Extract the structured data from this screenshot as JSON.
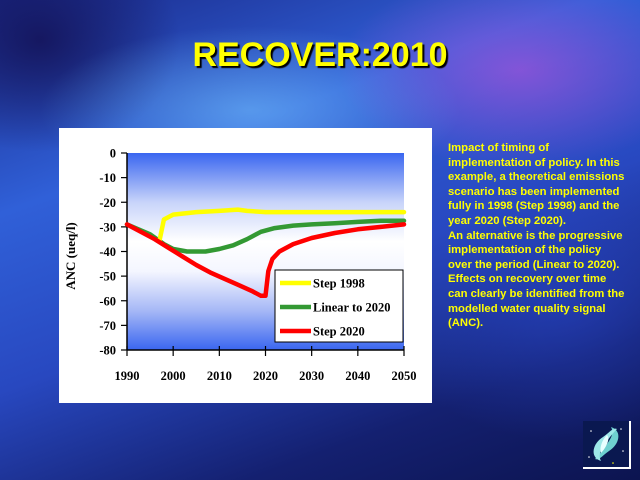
{
  "slide": {
    "title": "RECOVER:2010",
    "description": [
      "Impact of timing of implementation of policy. In this example, a theoretical emissions scenario has been implemented fully in 1998 (Step 1998) and the year 2020 (Step 2020).",
      "An alternative is the progressive implementation of the policy over the period (Linear to 2020). Effects on recovery over time can clearly be identified from the modelled water quality signal (ANC)."
    ],
    "logo_icon": "recover-logo-icon"
  },
  "chart_data": {
    "type": "line",
    "title": "",
    "xlabel": "",
    "ylabel": "ANC (ueq/l)",
    "xlim": [
      1990,
      2050
    ],
    "ylim": [
      -80,
      0
    ],
    "x_ticks": [
      "1990",
      "2000",
      "2010",
      "2020",
      "2030",
      "2040",
      "2050"
    ],
    "y_ticks": [
      "0",
      "-10",
      "-20",
      "-30",
      "-40",
      "-50",
      "-60",
      "-70",
      "-80"
    ],
    "grid": false,
    "legend_position": "lower right (inside)",
    "series": [
      {
        "name": "Step 1998",
        "color": "#ffff00",
        "x": [
          1997,
          1998,
          2000,
          2005,
          2010,
          2014,
          2016,
          2020,
          2030,
          2040,
          2050
        ],
        "y": [
          -36,
          -27,
          -25,
          -24,
          -23.5,
          -23,
          -23.5,
          -24,
          -24,
          -24,
          -24
        ]
      },
      {
        "name": "Linear to 2020",
        "color": "#339933",
        "x": [
          1990,
          1995,
          1998,
          2000,
          2003,
          2007,
          2010,
          2013,
          2016,
          2019,
          2022,
          2026,
          2030,
          2035,
          2040,
          2045,
          2050
        ],
        "y": [
          -29,
          -33,
          -37,
          -39,
          -40,
          -40,
          -39,
          -37.5,
          -35,
          -32,
          -30.5,
          -29.5,
          -29,
          -28.5,
          -28,
          -27.5,
          -27.5
        ]
      },
      {
        "name": "Step 2020",
        "color": "#ff0000",
        "x": [
          1990,
          1993,
          1996,
          1999,
          2002,
          2005,
          2008,
          2011,
          2014,
          2017,
          2019,
          2020,
          2020.6,
          2021.5,
          2023,
          2026,
          2030,
          2035,
          2040,
          2045,
          2050
        ],
        "y": [
          -29,
          -32,
          -35,
          -38.5,
          -42,
          -45.5,
          -48.5,
          -51,
          -53.5,
          -56,
          -58,
          -58,
          -48,
          -43,
          -40,
          -37,
          -34.5,
          -32.5,
          -31,
          -30,
          -29
        ]
      }
    ]
  }
}
